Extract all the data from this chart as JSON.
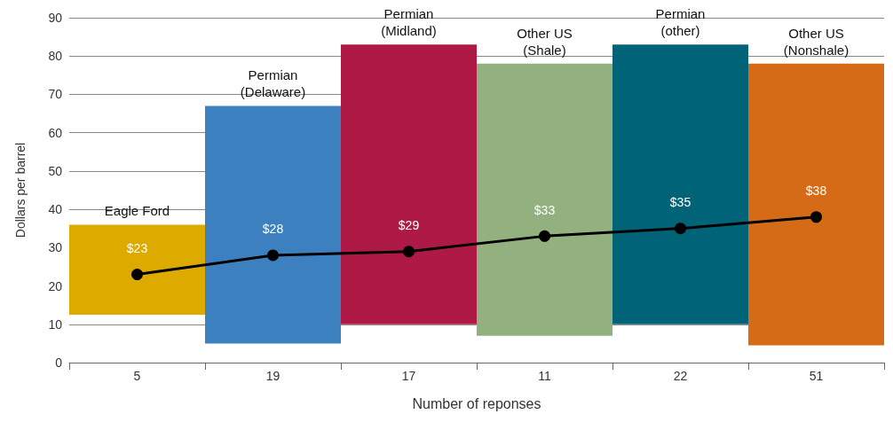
{
  "chart_data": {
    "type": "bar",
    "xlabel": "Number of reponses",
    "ylabel": "Dollars per barrel",
    "categories": [
      "5",
      "19",
      "17",
      "11",
      "22",
      "51"
    ],
    "ylim": [
      0,
      90
    ],
    "yticks": [
      0,
      10,
      20,
      30,
      40,
      50,
      60,
      70,
      80,
      90
    ],
    "grid": "y",
    "series": [
      {
        "base": [
          12.5,
          5,
          10,
          7,
          10,
          4.5
        ],
        "values": [
          23.5,
          62,
          73,
          71,
          73,
          73.5
        ],
        "colors": [
          "#ddaa00",
          "#3d80c0",
          "#ae1a45",
          "#93b07f",
          "#006378",
          "#d56b17"
        ]
      },
      {
        "type": "line",
        "color": "#000000",
        "marker": "circle",
        "line_style": "solid",
        "values": [
          23,
          28,
          29,
          33,
          35,
          38
        ],
        "value_labels": [
          "$23",
          "$28",
          "$29",
          "$33",
          "$35",
          "$38"
        ]
      }
    ],
    "annotations": [
      {
        "text": "Eagle Ford",
        "x": "5",
        "y": 36
      },
      {
        "text": "Permian\n(Delaware)",
        "x": "19",
        "y": 67
      },
      {
        "text": "Permian\n(Midland)",
        "x": "17",
        "y": 83
      },
      {
        "text": "Other US\n(Shale)",
        "x": "11",
        "y": 78
      },
      {
        "text": "Permian\n(other)",
        "x": "22",
        "y": 83
      },
      {
        "text": "Other US\n(Nonshale)",
        "x": "51",
        "y": 78
      }
    ]
  }
}
